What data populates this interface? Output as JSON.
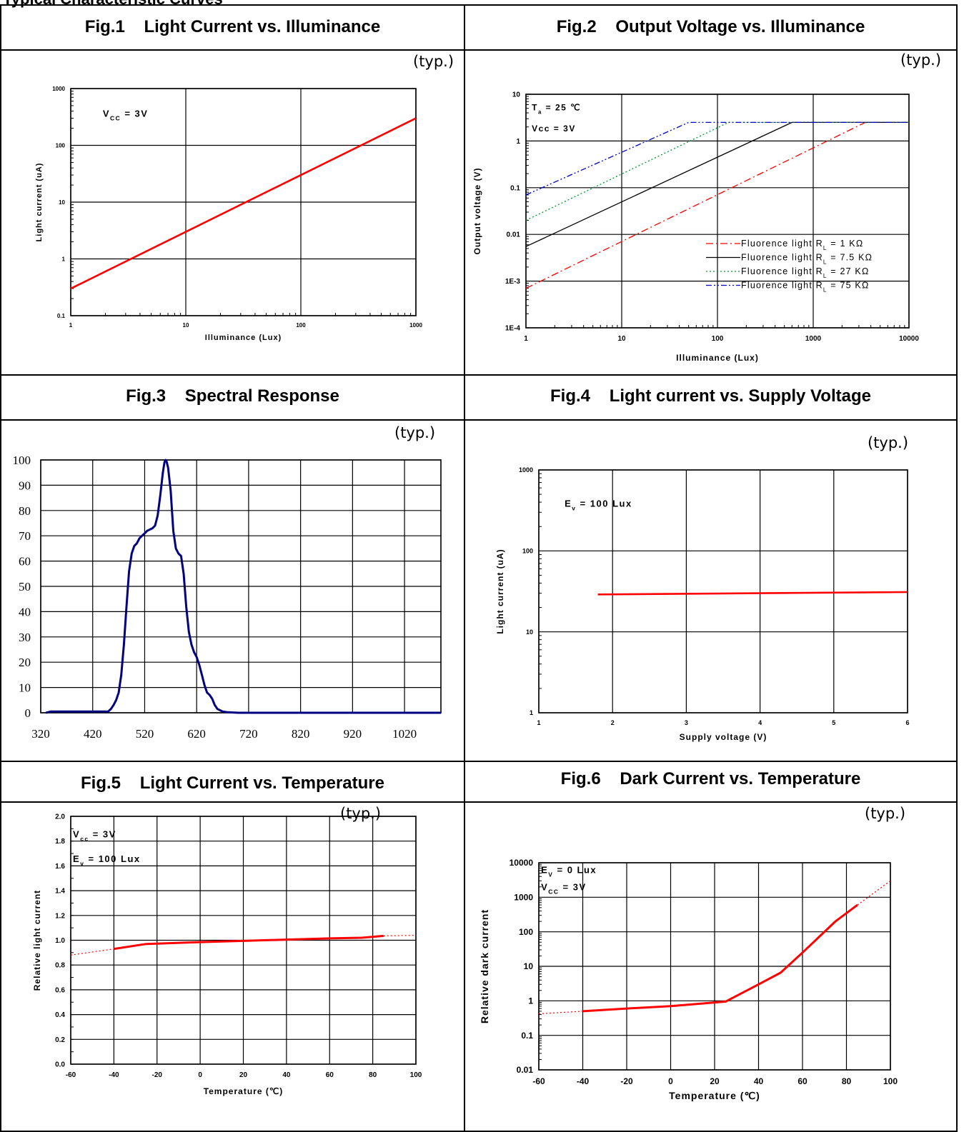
{
  "page": {
    "heading": "Typical Characteristic Curves"
  },
  "panels": [
    {
      "title": "Fig.1    Light Current vs. Illuminance",
      "typ": "(typ.)"
    },
    {
      "title": "Fig.2    Output Voltage vs. Illuminance",
      "typ": "(typ.)"
    },
    {
      "title": "Fig.3    Spectral Response",
      "typ": "(typ.)"
    },
    {
      "title": "Fig.4    Light current vs. Supply Voltage",
      "typ": "(typ.)"
    },
    {
      "title": "Fig.5    Light Current vs. Temperature",
      "typ": "(typ.)"
    },
    {
      "title": "Fig.6    Dark Current vs. Temperature",
      "typ": "(typ.)"
    }
  ],
  "colors": {
    "curve_red": "#ff0000",
    "curve_blue": "#0000cc",
    "curve_green": "#009933",
    "curve_black": "#000000",
    "spectral": "#000080",
    "grid": "#000000"
  },
  "chart_data": [
    {
      "type": "line",
      "title": "Light Current vs. Illuminance",
      "xlabel": "Illuminance (Lux)",
      "ylabel": "Light current (uA)",
      "xscale": "log",
      "yscale": "log",
      "xlim": [
        1,
        1000
      ],
      "ylim": [
        0.1,
        1000
      ],
      "xticks": [
        1,
        10,
        100,
        1000
      ],
      "xtick_labels": [
        "1",
        "10",
        "100",
        "1000"
      ],
      "yticks": [
        0.1,
        1,
        10,
        100,
        1000
      ],
      "ytick_labels": [
        "0.1",
        "1",
        "10",
        "100",
        "1000"
      ],
      "grid": true,
      "annotations": [
        {
          "parts": [
            {
              "text": "V"
            },
            {
              "text": "CC",
              "sub": true
            },
            {
              "text": " = 3V"
            }
          ],
          "x": 1.9,
          "y": 320
        }
      ],
      "series": [
        {
          "color": "#ff0000",
          "dash": "",
          "x": [
            1,
            1000
          ],
          "y": [
            0.3,
            300
          ]
        }
      ]
    },
    {
      "type": "line",
      "title": "Output Voltage vs. Illuminance",
      "xlabel": "Illuminance (Lux)",
      "ylabel": "Output voltage (V)",
      "xscale": "log",
      "yscale": "log",
      "xlim": [
        1,
        10000
      ],
      "ylim": [
        0.0001,
        10
      ],
      "xticks": [
        1,
        10,
        100,
        1000,
        10000
      ],
      "xtick_labels": [
        "1",
        "10",
        "100",
        "1000",
        "10000"
      ],
      "yticks": [
        0.0001,
        0.001,
        0.01,
        0.1,
        1,
        10
      ],
      "ytick_labels": [
        "1E-4",
        "1E-3",
        "0.01",
        "0.1",
        "1",
        "10"
      ],
      "grid": true,
      "annotations": [
        {
          "parts": [
            {
              "text": "T"
            },
            {
              "text": "a",
              "sub": true
            },
            {
              "text": " = 25 ℃"
            }
          ],
          "x": 1.15,
          "y": 4.5
        },
        {
          "parts": [
            {
              "text": "Vcc = 3V"
            }
          ],
          "x": 1.15,
          "y": 1.6
        }
      ],
      "legend": {
        "placement": "bottom-right",
        "entries": [
          {
            "parts": [
              {
                "text": "Fluorence light R"
              },
              {
                "text": "L",
                "sub": true
              },
              {
                "text": " = 1 KΩ"
              }
            ],
            "color": "#ff0000",
            "dash": "10 4 2 4"
          },
          {
            "parts": [
              {
                "text": "Fluorence light R"
              },
              {
                "text": "L",
                "sub": true
              },
              {
                "text": " = 7.5 KΩ"
              }
            ],
            "color": "#000000",
            "dash": ""
          },
          {
            "parts": [
              {
                "text": "Fluorence light R"
              },
              {
                "text": "L",
                "sub": true
              },
              {
                "text": " = 27 KΩ"
              }
            ],
            "color": "#009933",
            "dash": "2 3"
          },
          {
            "parts": [
              {
                "text": "Fluorence light R"
              },
              {
                "text": "L",
                "sub": true
              },
              {
                "text": " = 75 KΩ"
              }
            ],
            "color": "#0000cc",
            "dash": "8 3 2 3 2 3"
          }
        ]
      },
      "series": [
        {
          "color": "#ff0000",
          "dash": "10 4 2 4",
          "x": [
            1,
            3500,
            10000
          ],
          "y": [
            0.0007,
            2.5,
            2.5
          ]
        },
        {
          "color": "#000000",
          "dash": "",
          "x": [
            1,
            600,
            10000
          ],
          "y": [
            0.0055,
            2.5,
            2.5
          ]
        },
        {
          "color": "#009933",
          "dash": "2 3",
          "x": [
            1,
            130,
            10000
          ],
          "y": [
            0.02,
            2.5,
            2.5
          ]
        },
        {
          "color": "#0000cc",
          "dash": "8 3 2 3 2 3",
          "x": [
            1,
            50,
            10000
          ],
          "y": [
            0.07,
            2.5,
            2.5
          ]
        }
      ]
    },
    {
      "type": "line",
      "title": "Spectral Response",
      "xlabel": "",
      "ylabel": "",
      "xscale": "linear",
      "yscale": "linear",
      "xlim": [
        320,
        1090
      ],
      "ylim": [
        0,
        100
      ],
      "xticks": [
        320,
        420,
        520,
        620,
        720,
        820,
        920,
        1020
      ],
      "xtick_labels": [
        "320",
        "420",
        "520",
        "620",
        "720",
        "820",
        "920",
        "1020"
      ],
      "yticks": [
        0,
        10,
        20,
        30,
        40,
        50,
        60,
        70,
        80,
        90,
        100
      ],
      "ytick_labels": [
        "0",
        "10",
        "20",
        "30",
        "40",
        "50",
        "60",
        "70",
        "80",
        "90",
        "100"
      ],
      "grid": true,
      "series": [
        {
          "color": "#000080",
          "dash": "",
          "x": [
            330,
            340,
            450,
            455,
            460,
            465,
            470,
            475,
            480,
            485,
            490,
            495,
            500,
            505,
            510,
            515,
            520,
            525,
            530,
            535,
            540,
            545,
            550,
            555,
            558,
            560,
            562,
            565,
            570,
            575,
            580,
            585,
            590,
            595,
            600,
            605,
            610,
            615,
            620,
            625,
            630,
            635,
            640,
            645,
            650,
            655,
            660,
            665,
            670,
            680,
            700,
            1090
          ],
          "y": [
            0,
            0.5,
            0.5,
            1.5,
            3,
            5,
            8,
            15,
            27,
            42,
            56,
            63,
            66,
            67,
            69,
            70,
            71,
            72,
            72.5,
            73,
            74,
            78,
            86,
            95,
            99,
            100,
            99.5,
            97,
            88,
            72,
            65,
            63,
            62,
            55,
            42,
            32,
            27,
            24,
            22,
            19,
            15,
            11,
            8,
            7,
            5.5,
            3,
            1.5,
            1,
            0.5,
            0.2,
            0,
            0
          ]
        }
      ]
    },
    {
      "type": "line",
      "title": "Light current vs. Supply Voltage",
      "xlabel": "Supply voltage (V)",
      "ylabel": "Light current (uA)",
      "xscale": "linear",
      "yscale": "log",
      "xlim": [
        1,
        6
      ],
      "ylim": [
        1,
        1000
      ],
      "xticks": [
        1,
        2,
        3,
        4,
        5,
        6
      ],
      "xtick_labels": [
        "1",
        "2",
        "3",
        "4",
        "5",
        "6"
      ],
      "yticks": [
        1,
        10,
        100,
        1000
      ],
      "ytick_labels": [
        "1",
        "10",
        "100",
        "1000"
      ],
      "grid": true,
      "annotations": [
        {
          "parts": [
            {
              "text": "E"
            },
            {
              "text": "v",
              "sub": true
            },
            {
              "text": " = 100 Lux"
            }
          ],
          "x": 1.35,
          "y": 350
        }
      ],
      "series": [
        {
          "color": "#ff0000",
          "dash": "",
          "x": [
            1.8,
            6
          ],
          "y": [
            29,
            31
          ]
        }
      ]
    },
    {
      "type": "line",
      "title": "Light Current vs. Temperature",
      "xlabel": "Temperature (℃)",
      "ylabel": "Relative light current",
      "xscale": "linear",
      "yscale": "linear",
      "xlim": [
        -60,
        100
      ],
      "ylim": [
        0,
        2
      ],
      "xticks": [
        -60,
        -40,
        -20,
        0,
        20,
        40,
        60,
        80,
        100
      ],
      "xtick_labels": [
        "-60",
        "-40",
        "-20",
        "0",
        "20",
        "40",
        "60",
        "80",
        "100"
      ],
      "yticks": [
        0,
        0.2,
        0.4,
        0.6,
        0.8,
        1,
        1.2,
        1.4,
        1.6,
        1.8,
        2
      ],
      "ytick_labels": [
        "0.0",
        "0.2",
        "0.4",
        "0.6",
        "0.8",
        "1.0",
        "1.2",
        "1.4",
        "1.6",
        "1.8",
        "2.0"
      ],
      "grid": true,
      "annotations": [
        {
          "parts": [
            {
              "text": "V"
            },
            {
              "text": "cc",
              "sub": true
            },
            {
              "text": " = 3V"
            }
          ],
          "x": -59,
          "y": 1.83
        },
        {
          "parts": [
            {
              "text": "E"
            },
            {
              "text": "v",
              "sub": true
            },
            {
              "text": " = 100 Lux"
            }
          ],
          "x": -59,
          "y": 1.63
        }
      ],
      "series": [
        {
          "color": "#ff0000",
          "dash": "",
          "width": 3,
          "x": [
            -40,
            -25,
            0,
            20,
            40,
            60,
            75,
            85
          ],
          "y": [
            0.93,
            0.97,
            0.985,
            0.995,
            1.005,
            1.015,
            1.02,
            1.035
          ]
        },
        {
          "color": "#ff0000",
          "dash": "2 3",
          "width": 1.2,
          "x": [
            -60,
            -40
          ],
          "y": [
            0.88,
            0.93
          ]
        },
        {
          "color": "#ff0000",
          "dash": "2 3",
          "width": 1.2,
          "x": [
            85,
            100
          ],
          "y": [
            1.035,
            1.04
          ]
        }
      ]
    },
    {
      "type": "line",
      "title": "Dark Current vs. Temperature",
      "xlabel": "Temperature (℃)",
      "ylabel": "Relative dark current",
      "xscale": "linear",
      "yscale": "log",
      "xlim": [
        -60,
        100
      ],
      "ylim": [
        0.01,
        10000
      ],
      "xticks": [
        -60,
        -40,
        -20,
        0,
        20,
        40,
        60,
        80,
        100
      ],
      "xtick_labels": [
        "-60",
        "-40",
        "-20",
        "0",
        "20",
        "40",
        "60",
        "80",
        "100"
      ],
      "yticks": [
        0.01,
        0.1,
        1,
        10,
        100,
        1000,
        10000
      ],
      "ytick_labels": [
        "0.01",
        "0.1",
        "1",
        "10",
        "100",
        "1000",
        "10000"
      ],
      "grid": true,
      "annotations": [
        {
          "parts": [
            {
              "text": "E"
            },
            {
              "text": "V",
              "sub": true
            },
            {
              "text": " = 0 Lux"
            }
          ],
          "x": -59,
          "y": 5000
        },
        {
          "parts": [
            {
              "text": "V"
            },
            {
              "text": "CC",
              "sub": true
            },
            {
              "text": " = 3V"
            }
          ],
          "x": -59,
          "y": 1600
        }
      ],
      "series": [
        {
          "color": "#ff0000",
          "dash": "",
          "width": 3,
          "x": [
            -40,
            -20,
            0,
            25,
            40,
            50,
            60,
            75,
            85
          ],
          "y": [
            0.5,
            0.6,
            0.7,
            0.95,
            3,
            6.5,
            25,
            200,
            600
          ]
        },
        {
          "color": "#ff0000",
          "dash": "2 3",
          "width": 1.2,
          "x": [
            -60,
            -40
          ],
          "y": [
            0.42,
            0.5
          ]
        },
        {
          "color": "#ff0000",
          "dash": "2 3",
          "width": 1.2,
          "x": [
            85,
            100
          ],
          "y": [
            600,
            3000
          ]
        }
      ]
    }
  ]
}
